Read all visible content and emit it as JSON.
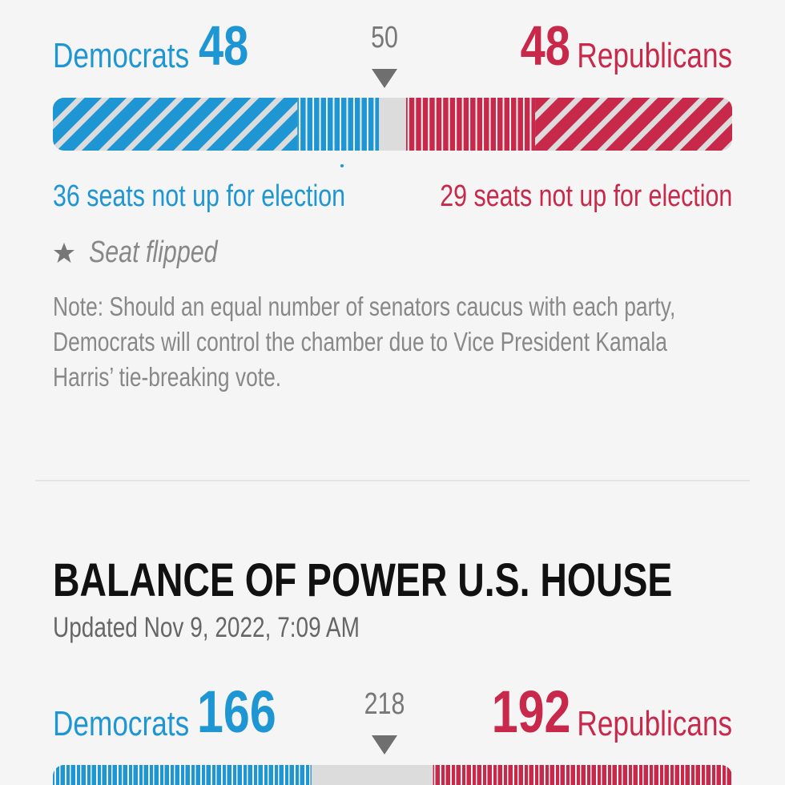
{
  "senate": {
    "dem_label": "Democrats",
    "dem_seats": 48,
    "majority": 50,
    "rep_seats": 48,
    "rep_label": "Republicans",
    "dem_not_up": 36,
    "rep_not_up": 29,
    "not_up_text": "seats not up for election",
    "legend": "Seat flipped",
    "note": [
      "Note: Should an equal number of senators caucus with each party,",
      "Democrats will control the chamber due to Vice President Kamala",
      "Harris’ tie-breaking vote."
    ]
  },
  "house": {
    "title": "BALANCE OF POWER U.S. HOUSE",
    "updated": "Updated Nov 9, 2022, 7:09 AM",
    "dem_label": "Democrats",
    "dem_seats": 166,
    "majority": 218,
    "rep_seats": 192,
    "rep_label": "Republicans"
  }
}
